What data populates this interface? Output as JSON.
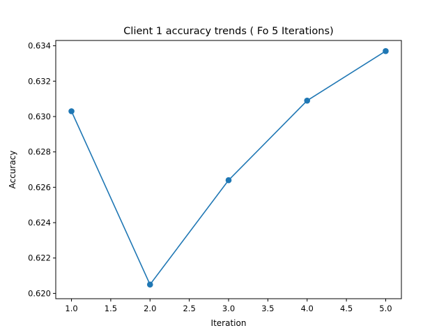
{
  "chart_data": {
    "type": "line",
    "title": "Client 1 accuracy trends ( Fo 5 Iterations)",
    "xlabel": "Iteration",
    "ylabel": "Accuracy",
    "xlim": [
      0.8,
      5.2
    ],
    "ylim": [
      0.6197,
      0.6343
    ],
    "xticks": [
      1.0,
      1.5,
      2.0,
      2.5,
      3.0,
      3.5,
      4.0,
      4.5,
      5.0
    ],
    "xtick_labels": [
      "1.0",
      "1.5",
      "2.0",
      "2.5",
      "3.0",
      "3.5",
      "4.0",
      "4.5",
      "5.0"
    ],
    "yticks": [
      0.62,
      0.622,
      0.624,
      0.626,
      0.628,
      0.63,
      0.632,
      0.634
    ],
    "ytick_labels": [
      "0.620",
      "0.622",
      "0.624",
      "0.626",
      "0.628",
      "0.630",
      "0.632",
      "0.634"
    ],
    "grid": false,
    "series": [
      {
        "color": "#1f77b4",
        "marker": "circle",
        "x": [
          1,
          2,
          3,
          4,
          5
        ],
        "y": [
          0.6303,
          0.6205,
          0.6264,
          0.6309,
          0.6337
        ]
      }
    ]
  }
}
